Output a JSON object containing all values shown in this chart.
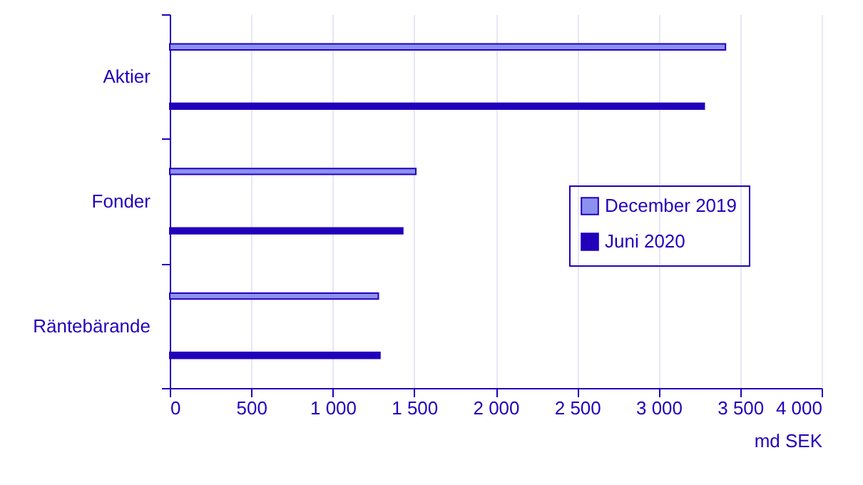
{
  "chart_data": {
    "type": "bar",
    "orientation": "horizontal",
    "xlabel": "md SEK",
    "categories": [
      "Aktier",
      "Fonder",
      "Räntebärande"
    ],
    "series": [
      {
        "name": "December 2019",
        "color": "#8c91f0",
        "values": [
          3410,
          1510,
          1280
        ]
      },
      {
        "name": "Juni 2020",
        "color": "#2200bb",
        "values": [
          3280,
          1430,
          1290
        ]
      }
    ],
    "xlim": [
      0,
      4000
    ],
    "xticks": [
      0,
      {
        "value": 500,
        "label": "500"
      },
      {
        "value": 1000,
        "label": "1 000"
      },
      {
        "value": 1500,
        "label": "1 500"
      },
      {
        "value": 2000,
        "label": "2 000"
      },
      {
        "value": 2500,
        "label": "2 500"
      },
      {
        "value": 3000,
        "label": "3 000"
      },
      {
        "value": 3500,
        "label": "3 500"
      },
      {
        "value": 4000,
        "label": "4 000"
      }
    ],
    "grid": "x",
    "legend": "right"
  }
}
